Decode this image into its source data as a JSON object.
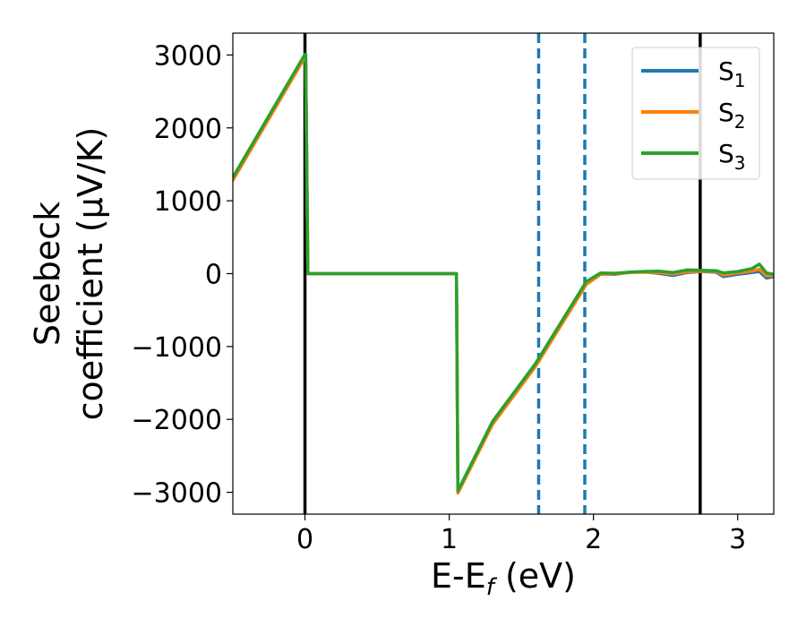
{
  "chart_data": {
    "type": "line",
    "xlabel": "E-E_f (eV)",
    "xlabel_parts": {
      "main": "E-E",
      "sub": "f",
      "tail": " (eV)"
    },
    "ylabel_line1": "Seebeck",
    "ylabel_line2": "coefficient  (μV/K)",
    "xlim": [
      -0.5,
      3.25
    ],
    "ylim": [
      -3300,
      3300
    ],
    "xticks": [
      0,
      1,
      2,
      3
    ],
    "xtick_labels": [
      "0",
      "1",
      "2",
      "3"
    ],
    "yticks": [
      3000,
      2000,
      1000,
      0,
      -1000,
      -2000,
      -3000
    ],
    "ytick_labels": [
      "3000",
      "2000",
      "1000",
      "0",
      "−1000",
      "−2000",
      "−3000"
    ],
    "grid": false,
    "legend_position": "top-right",
    "vlines": [
      {
        "x": 0.0,
        "style": "solid",
        "color": "#000000"
      },
      {
        "x": 2.74,
        "style": "solid",
        "color": "#000000"
      },
      {
        "x": 1.62,
        "style": "dashed",
        "color": "#1f77b4"
      },
      {
        "x": 1.94,
        "style": "dashed",
        "color": "#1f77b4"
      }
    ],
    "series": [
      {
        "name": "S₁",
        "name_main": "S",
        "name_sub": "1",
        "color": "#1f77b4",
        "x": [
          -0.5,
          0.0,
          0.005,
          0.02,
          1.05,
          1.055,
          1.06,
          1.3,
          1.6,
          1.85,
          1.95,
          2.05,
          2.15,
          2.25,
          2.35,
          2.45,
          2.55,
          2.65,
          2.75,
          2.85,
          2.9,
          3.0,
          3.1,
          3.15,
          3.2,
          3.25
        ],
        "y": [
          1300,
          3000,
          3000,
          0,
          0,
          -1500,
          -3000,
          -2050,
          -1250,
          -450,
          -130,
          -5,
          -10,
          20,
          25,
          5,
          -25,
          15,
          30,
          20,
          -40,
          -10,
          15,
          30,
          -60,
          -40
        ]
      },
      {
        "name": "S₂",
        "name_main": "S",
        "name_sub": "2",
        "color": "#ff7f0e",
        "x": [
          -0.5,
          0.0,
          0.005,
          0.02,
          1.05,
          1.055,
          1.06,
          1.3,
          1.6,
          1.85,
          1.95,
          2.05,
          2.15,
          2.25,
          2.35,
          2.45,
          2.55,
          2.65,
          2.75,
          2.85,
          2.9,
          3.0,
          3.1,
          3.15,
          3.2,
          3.25
        ],
        "y": [
          1280,
          2970,
          2970,
          0,
          0,
          -1500,
          -3010,
          -2070,
          -1270,
          -470,
          -150,
          -10,
          -5,
          15,
          20,
          15,
          -5,
          25,
          35,
          30,
          -20,
          10,
          35,
          60,
          -30,
          -30
        ]
      },
      {
        "name": "S₃",
        "name_main": "S",
        "name_sub": "3",
        "color": "#2ca02c",
        "x": [
          -0.5,
          0.0,
          0.005,
          0.02,
          1.05,
          1.055,
          1.06,
          1.3,
          1.6,
          1.85,
          1.95,
          2.05,
          2.15,
          2.25,
          2.35,
          2.45,
          2.55,
          2.65,
          2.75,
          2.85,
          2.9,
          3.0,
          3.1,
          3.15,
          3.2,
          3.25
        ],
        "y": [
          1320,
          3010,
          3010,
          0,
          0,
          -1500,
          -2980,
          -2030,
          -1230,
          -430,
          -110,
          10,
          5,
          20,
          30,
          35,
          15,
          50,
          45,
          40,
          10,
          30,
          70,
          130,
          10,
          -10
        ]
      }
    ]
  }
}
